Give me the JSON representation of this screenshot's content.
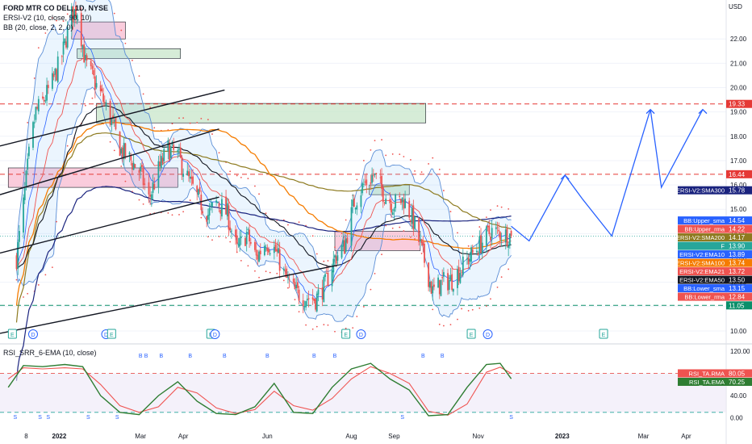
{
  "header": {
    "symbol_line": "FORD MTR CO DEL, 1D, NYSE",
    "indicator1": "ERSI-V2 (10, close, 90, 10)",
    "indicator2": "BB (20, close, 2, 2, 0)",
    "currency": "USD"
  },
  "lower_pane": {
    "title": "RSI_SRR_6-EMA (10, close)"
  },
  "colors": {
    "up": "#26a69a",
    "down": "#ef5350",
    "bb": "#5b8ed6",
    "ema10": "#2962ff",
    "ema21": "#ef5350",
    "ema50": "#131722",
    "sma100": "#f57c00",
    "sma200": "#8d7a1f",
    "sma300": "#1a237e",
    "rsi_rma": "#ef5350",
    "rsi_ema": "#2e7d32"
  },
  "chart_data": [
    {
      "type": "candlestick",
      "pane": "price",
      "y_axis": {
        "unit": "USD",
        "ticks": [
          10.0,
          11.0,
          12.0,
          13.0,
          14.0,
          15.0,
          16.0,
          17.0,
          18.0,
          19.0,
          20.0,
          21.0,
          22.0
        ],
        "tick_labels": [
          "10.00",
          "11.00",
          "12.00",
          "13.00",
          "14.00",
          "15.00",
          "16.00",
          "17.00",
          "18.00",
          "19.00",
          "20.00",
          "21.00",
          "22.00"
        ],
        "range": [
          9.6,
          23.6
        ]
      },
      "x_axis": {
        "tick_labels": [
          "8",
          "2022",
          "Mar",
          "Apr",
          "Jun",
          "Aug",
          "Sep",
          "Nov",
          "2023",
          "Mar",
          "Apr"
        ],
        "bold_labels": [
          "2022",
          "2023"
        ]
      },
      "close_path": [
        [
          "2021-12-01",
          13.0
        ],
        [
          "2021-12-06",
          15.2
        ],
        [
          "2021-12-10",
          17.2
        ],
        [
          "2021-12-15",
          19.0
        ],
        [
          "2021-12-20",
          19.4
        ],
        [
          "2021-12-27",
          20.2
        ],
        [
          "2022-01-03",
          21.3
        ],
        [
          "2022-01-10",
          23.0
        ],
        [
          "2022-01-14",
          23.2
        ],
        [
          "2022-01-20",
          21.0
        ],
        [
          "2022-01-26",
          20.3
        ],
        [
          "2022-02-01",
          19.6
        ],
        [
          "2022-02-08",
          18.6
        ],
        [
          "2022-02-15",
          17.4
        ],
        [
          "2022-02-22",
          17.0
        ],
        [
          "2022-03-01",
          16.5
        ],
        [
          "2022-03-07",
          15.4
        ],
        [
          "2022-03-14",
          16.6
        ],
        [
          "2022-03-21",
          17.5
        ],
        [
          "2022-03-28",
          17.2
        ],
        [
          "2022-04-04",
          16.3
        ],
        [
          "2022-04-11",
          15.5
        ],
        [
          "2022-04-19",
          14.8
        ],
        [
          "2022-04-26",
          15.3
        ],
        [
          "2022-05-03",
          14.8
        ],
        [
          "2022-05-10",
          13.3
        ],
        [
          "2022-05-17",
          14.0
        ],
        [
          "2022-05-24",
          13.0
        ],
        [
          "2022-05-31",
          13.7
        ],
        [
          "2022-06-07",
          13.3
        ],
        [
          "2022-06-14",
          12.2
        ],
        [
          "2022-06-21",
          11.6
        ],
        [
          "2022-06-28",
          11.4
        ],
        [
          "2022-07-06",
          11.3
        ],
        [
          "2022-07-13",
          11.9
        ],
        [
          "2022-07-20",
          13.0
        ],
        [
          "2022-07-27",
          13.5
        ],
        [
          "2022-08-03",
          15.3
        ],
        [
          "2022-08-10",
          16.0
        ],
        [
          "2022-08-17",
          16.4
        ],
        [
          "2022-08-24",
          15.7
        ],
        [
          "2022-08-31",
          15.2
        ],
        [
          "2022-09-08",
          15.4
        ],
        [
          "2022-09-15",
          14.5
        ],
        [
          "2022-09-22",
          13.1
        ],
        [
          "2022-09-29",
          11.6
        ],
        [
          "2022-10-06",
          12.0
        ],
        [
          "2022-10-13",
          12.1
        ],
        [
          "2022-10-20",
          12.6
        ],
        [
          "2022-10-27",
          13.1
        ],
        [
          "2022-11-03",
          13.6
        ],
        [
          "2022-11-10",
          14.1
        ],
        [
          "2022-11-17",
          14.0
        ],
        [
          "2022-11-25",
          13.9
        ]
      ],
      "last_price": 13.9,
      "horizontal_levels": [
        {
          "value": 19.33,
          "label": "19.33",
          "color": "#e53935"
        },
        {
          "value": 16.44,
          "label": "16.44",
          "color": "#e53935"
        },
        {
          "value": 11.05,
          "label": "11.05",
          "color": "#0a8f6a"
        }
      ],
      "price_tags": [
        {
          "label": "ERSI-V2:SMA300",
          "value": 15.78,
          "text": "15.78",
          "color": "#1a237e"
        },
        {
          "label": "BB:Upper_sma",
          "value": 14.54,
          "text": "14.54",
          "color": "#2962ff"
        },
        {
          "label": "BB:Upper_rma",
          "value": 14.22,
          "text": "14.22",
          "color": "#ef5350"
        },
        {
          "label": "ERSI-V2:SMA200",
          "value": 14.17,
          "text": "14.17",
          "color": "#8d7a1f"
        },
        {
          "label": "F",
          "value": 13.9,
          "text": "13.90",
          "color": "#26a69a"
        },
        {
          "label": "ERSI-V2:EMA10",
          "value": 13.89,
          "text": "13.89",
          "color": "#2962ff"
        },
        {
          "label": "ERSI-V2:SMA100",
          "value": 13.74,
          "text": "13.74",
          "color": "#f57c00"
        },
        {
          "label": "ERSI-V2:EMA21",
          "value": 13.72,
          "text": "13.72",
          "color": "#ef5350"
        },
        {
          "label": "ERSI-V2:EMA50",
          "value": 13.5,
          "text": "13.50",
          "color": "#131722"
        },
        {
          "label": "BB:Lower_sma",
          "value": 13.15,
          "text": "13.15",
          "color": "#2962ff"
        },
        {
          "label": "BB:Lower_rma",
          "value": 12.84,
          "text": "12.84",
          "color": "#ef5350"
        }
      ],
      "zones": [
        {
          "from": "2022-01-10",
          "to": "2022-02-18",
          "low": 22.0,
          "high": 22.7,
          "color": "#f8bbd0"
        },
        {
          "from": "2022-01-14",
          "to": "2022-03-30",
          "low": 21.2,
          "high": 21.6,
          "color": "#c8e6c9"
        },
        {
          "from": "2022-01-28",
          "to": "2022-09-24",
          "low": 18.55,
          "high": 19.35,
          "color": "#c8e6c9"
        },
        {
          "from": "2021-11-25",
          "to": "2022-03-28",
          "low": 15.9,
          "high": 16.7,
          "color": "#f8bbd0"
        },
        {
          "from": "2022-07-20",
          "to": "2022-09-20",
          "low": 13.3,
          "high": 14.1,
          "color": "#f8bbd0"
        },
        {
          "from": "2022-08-14",
          "to": "2022-09-12",
          "low": 15.6,
          "high": 16.0,
          "color": "#c8e6c9"
        }
      ],
      "projection": [
        [
          "2022-11-25",
          14.3
        ],
        [
          "2022-12-08",
          13.7
        ],
        [
          "2023-01-03",
          16.4
        ],
        [
          "2023-01-16",
          15.4
        ],
        [
          "2023-02-06",
          13.9
        ],
        [
          "2023-03-06",
          19.1
        ],
        [
          "2023-03-14",
          15.9
        ],
        [
          "2023-04-13",
          19.1
        ]
      ],
      "events": [
        {
          "date": "2021-11-28",
          "text": "E"
        },
        {
          "date": "2021-12-13",
          "text": "D"
        },
        {
          "date": "2022-02-04",
          "text": "D"
        },
        {
          "date": "2022-02-08",
          "text": "E"
        },
        {
          "date": "2022-04-21",
          "text": "E"
        },
        {
          "date": "2022-04-24",
          "text": "D"
        },
        {
          "date": "2022-07-28",
          "text": "E"
        },
        {
          "date": "2022-08-08",
          "text": "D"
        },
        {
          "date": "2022-10-27",
          "text": "E"
        },
        {
          "date": "2022-11-08",
          "text": "D"
        },
        {
          "date": "2023-01-31",
          "text": "E"
        }
      ]
    },
    {
      "type": "line",
      "pane": "oscillator",
      "y_axis": {
        "ticks": [
          0.0,
          40.0,
          80.0,
          120.0
        ],
        "tick_labels": [
          "0.00",
          "40.00",
          "80.00",
          "120.00"
        ],
        "range": [
          -12,
          130
        ]
      },
      "levels": [
        80,
        10
      ],
      "series": [
        {
          "name": "RSI_TA.RMA",
          "last": 80.05,
          "last_text": "80.05",
          "points": [
            [
              "2021-11-25",
              70
            ],
            [
              "2021-12-06",
              90
            ],
            [
              "2021-12-20",
              88
            ],
            [
              "2022-01-05",
              90
            ],
            [
              "2022-01-18",
              88
            ],
            [
              "2022-01-31",
              60
            ],
            [
              "2022-02-14",
              22
            ],
            [
              "2022-02-28",
              10
            ],
            [
              "2022-03-14",
              20
            ],
            [
              "2022-03-28",
              55
            ],
            [
              "2022-04-11",
              45
            ],
            [
              "2022-04-25",
              18
            ],
            [
              "2022-05-09",
              8
            ],
            [
              "2022-05-23",
              15
            ],
            [
              "2022-06-06",
              48
            ],
            [
              "2022-06-20",
              22
            ],
            [
              "2022-07-04",
              14
            ],
            [
              "2022-07-18",
              35
            ],
            [
              "2022-08-01",
              70
            ],
            [
              "2022-08-15",
              92
            ],
            [
              "2022-08-29",
              80
            ],
            [
              "2022-09-12",
              62
            ],
            [
              "2022-09-26",
              12
            ],
            [
              "2022-10-10",
              5
            ],
            [
              "2022-10-24",
              25
            ],
            [
              "2022-11-07",
              82
            ],
            [
              "2022-11-17",
              91
            ],
            [
              "2022-11-25",
              80.05
            ]
          ]
        },
        {
          "name": "RSI_TA.EMA",
          "last": 70.25,
          "last_text": "70.25",
          "points": [
            [
              "2021-11-25",
              55
            ],
            [
              "2021-12-06",
              94
            ],
            [
              "2021-12-20",
              92
            ],
            [
              "2022-01-05",
              96
            ],
            [
              "2022-01-18",
              92
            ],
            [
              "2022-01-31",
              40
            ],
            [
              "2022-02-14",
              10
            ],
            [
              "2022-02-28",
              6
            ],
            [
              "2022-03-14",
              40
            ],
            [
              "2022-03-28",
              65
            ],
            [
              "2022-04-11",
              30
            ],
            [
              "2022-04-25",
              8
            ],
            [
              "2022-05-09",
              6
            ],
            [
              "2022-05-23",
              20
            ],
            [
              "2022-06-06",
              62
            ],
            [
              "2022-06-20",
              10
            ],
            [
              "2022-07-04",
              8
            ],
            [
              "2022-07-18",
              55
            ],
            [
              "2022-08-01",
              88
            ],
            [
              "2022-08-15",
              98
            ],
            [
              "2022-08-29",
              70
            ],
            [
              "2022-09-12",
              50
            ],
            [
              "2022-09-26",
              4
            ],
            [
              "2022-10-10",
              6
            ],
            [
              "2022-10-24",
              55
            ],
            [
              "2022-11-07",
              96
            ],
            [
              "2022-11-17",
              98
            ],
            [
              "2022-11-25",
              70.25
            ]
          ]
        }
      ],
      "signals_top": [
        "2022-03-01",
        "2022-03-05",
        "2022-03-16",
        "2022-04-06",
        "2022-05-01",
        "2022-06-01",
        "2022-07-05",
        "2022-07-20",
        "2022-09-22",
        "2022-10-06"
      ],
      "signals_bottom": [
        "2021-11-30",
        "2021-12-18",
        "2021-12-24",
        "2022-01-22",
        "2022-02-12",
        "2022-09-07",
        "2022-11-25"
      ]
    }
  ]
}
